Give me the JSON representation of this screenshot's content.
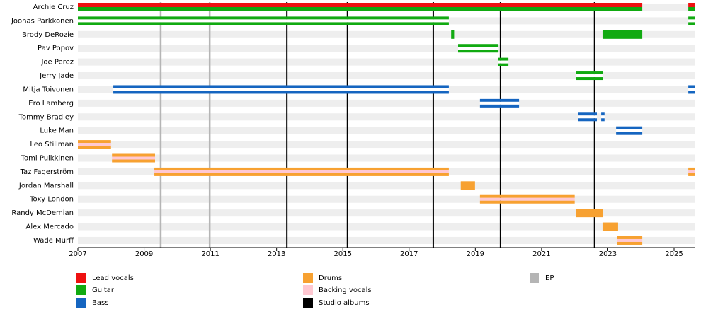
{
  "chart_data": {
    "type": "timeline",
    "xlim": [
      2007,
      2025.62
    ],
    "xticks": [
      2007,
      2009,
      2011,
      2013,
      2015,
      2017,
      2019,
      2021,
      2023,
      2025
    ],
    "studio_albums": {
      "color": "#000000",
      "x": [
        2013.31,
        2015.14,
        2017.73,
        2019.76,
        2022.6
      ]
    },
    "eps": {
      "color": "#b5b5b5",
      "x": [
        2009.5,
        2010.98
      ]
    },
    "legend": [
      {
        "name": "Lead vocals",
        "color": "#ee1111"
      },
      {
        "name": "Guitar",
        "color": "#11aa11"
      },
      {
        "name": "Bass",
        "color": "#1565c0"
      },
      {
        "name": "Drums",
        "color": "#f7a131"
      },
      {
        "name": "Backing vocals",
        "color": "#ffc8d2"
      },
      {
        "name": "EP",
        "color": "#b5b5b5"
      },
      {
        "name": "Studio albums",
        "color": "#000000"
      }
    ],
    "members": [
      {
        "name": "Archie Cruz",
        "bars": [
          {
            "start": 2007,
            "end": 2024.04,
            "colors": [
              "#ee1111",
              "#11aa11"
            ]
          },
          {
            "start": 2025.43,
            "end": 2025.62,
            "colors": [
              "#ee1111",
              "#11aa11"
            ]
          }
        ]
      },
      {
        "name": "Joonas Parkkonen",
        "bars": [
          {
            "start": 2007,
            "end": 2018.2,
            "colors": [
              "#11aa11",
              "#ffffff",
              "#11aa11"
            ]
          },
          {
            "start": 2025.43,
            "end": 2025.62,
            "colors": [
              "#11aa11",
              "#ffffff",
              "#11aa11"
            ]
          }
        ]
      },
      {
        "name": "Brody DeRozie",
        "bars": [
          {
            "start": 2018.27,
            "end": 2018.36,
            "colors": [
              "#11aa11"
            ]
          },
          {
            "start": 2022.84,
            "end": 2024.04,
            "colors": [
              "#11aa11"
            ]
          }
        ]
      },
      {
        "name": "Pav Popov",
        "bars": [
          {
            "start": 2018.48,
            "end": 2019.7,
            "colors": [
              "#11aa11",
              "#ffffff",
              "#11aa11"
            ]
          }
        ]
      },
      {
        "name": "Joe Perez",
        "bars": [
          {
            "start": 2019.68,
            "end": 2020.0,
            "colors": [
              "#11aa11",
              "#ffffff",
              "#11aa11"
            ]
          }
        ]
      },
      {
        "name": "Jerry Jade",
        "bars": [
          {
            "start": 2022.05,
            "end": 2022.86,
            "colors": [
              "#11aa11",
              "#ffffff",
              "#11aa11"
            ]
          }
        ]
      },
      {
        "name": "Mitja Toivonen",
        "bars": [
          {
            "start": 2008.07,
            "end": 2018.2,
            "colors": [
              "#1565c0",
              "#ffffff",
              "#1565c0"
            ]
          },
          {
            "start": 2025.43,
            "end": 2025.62,
            "colors": [
              "#1565c0",
              "#ffffff",
              "#1565c0"
            ]
          }
        ]
      },
      {
        "name": "Ero Lamberg",
        "bars": [
          {
            "start": 2019.14,
            "end": 2020.32,
            "colors": [
              "#1565c0",
              "#ffffff",
              "#1565c0"
            ]
          }
        ]
      },
      {
        "name": "Tommy Bradley",
        "bars": [
          {
            "start": 2022.11,
            "end": 2022.67,
            "colors": [
              "#1565c0",
              "#ffffff",
              "#1565c0"
            ]
          },
          {
            "start": 2022.8,
            "end": 2022.9,
            "colors": [
              "#1565c0",
              "#ffffff",
              "#1565c0"
            ]
          }
        ]
      },
      {
        "name": "Luke Man",
        "bars": [
          {
            "start": 2023.25,
            "end": 2024.04,
            "colors": [
              "#1565c0",
              "#ffffff",
              "#1565c0"
            ]
          }
        ]
      },
      {
        "name": "Leo Stillman",
        "bars": [
          {
            "start": 2007,
            "end": 2008.0,
            "colors": [
              "#f7a131",
              "#ffc8d2",
              "#f7a131"
            ]
          }
        ]
      },
      {
        "name": "Tomi Pulkkinen",
        "bars": [
          {
            "start": 2008.03,
            "end": 2009.33,
            "colors": [
              "#f7a131",
              "#ffc8d2",
              "#f7a131"
            ]
          }
        ]
      },
      {
        "name": "Taz Fagerström",
        "bars": [
          {
            "start": 2009.31,
            "end": 2018.2,
            "colors": [
              "#f7a131",
              "#ffc8d2",
              "#f7a131"
            ]
          },
          {
            "start": 2025.43,
            "end": 2025.62,
            "colors": [
              "#f7a131",
              "#ffc8d2",
              "#f7a131"
            ]
          }
        ]
      },
      {
        "name": "Jordan Marshall",
        "bars": [
          {
            "start": 2018.56,
            "end": 2018.99,
            "colors": [
              "#f7a131"
            ]
          }
        ]
      },
      {
        "name": "Toxy London",
        "bars": [
          {
            "start": 2019.14,
            "end": 2022.0,
            "colors": [
              "#f7a131",
              "#ffc8d2",
              "#f7a131"
            ]
          }
        ]
      },
      {
        "name": "Randy McDemian",
        "bars": [
          {
            "start": 2022.05,
            "end": 2022.86,
            "colors": [
              "#f7a131"
            ]
          }
        ]
      },
      {
        "name": "Alex Mercado",
        "bars": [
          {
            "start": 2022.84,
            "end": 2023.31,
            "colors": [
              "#f7a131"
            ]
          }
        ]
      },
      {
        "name": "Wade Murff",
        "bars": [
          {
            "start": 2023.27,
            "end": 2024.04,
            "colors": [
              "#f7a131",
              "#ffc8d2",
              "#f7a131"
            ]
          }
        ]
      }
    ]
  }
}
